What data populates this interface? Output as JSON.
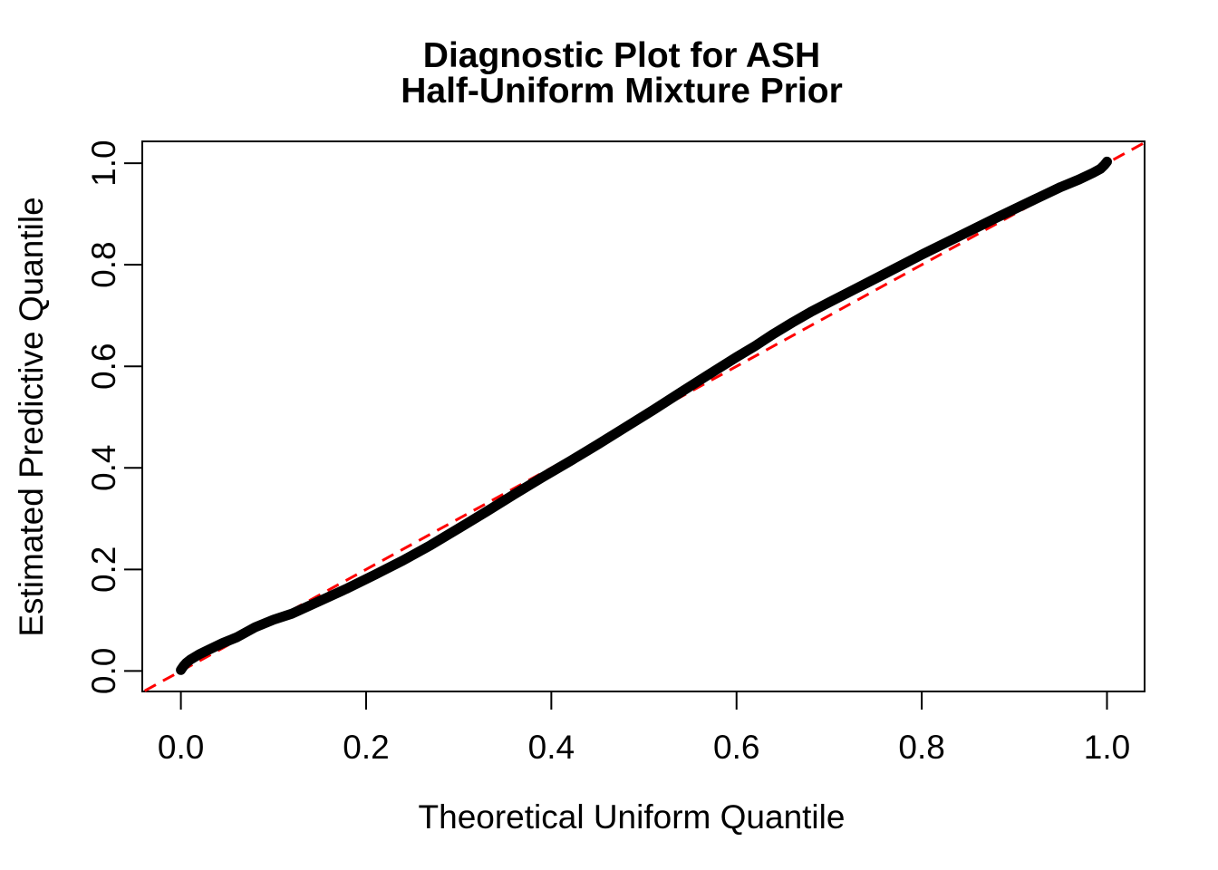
{
  "title": {
    "line1": "Diagnostic Plot for ASH",
    "line2": "Half-Uniform Mixture Prior"
  },
  "colors": {
    "curve": "#000000",
    "reference_line": "#FF0000",
    "background": "#FFFFFF",
    "text": "#000000"
  },
  "chart_data": {
    "type": "line",
    "title": "Diagnostic Plot for ASH\nHalf-Uniform Mixture Prior",
    "title_lines": [
      "Diagnostic Plot for ASH",
      "Half-Uniform Mixture Prior"
    ],
    "xlabel": "Theoretical Uniform Quantile",
    "ylabel": "Estimated Predictive Quantile",
    "xlim": [
      -0.04,
      1.04
    ],
    "ylim": [
      -0.04,
      1.04
    ],
    "grid": false,
    "legend": null,
    "x_ticks": [
      0.0,
      0.2,
      0.4,
      0.6,
      0.8,
      1.0
    ],
    "y_ticks": [
      0.0,
      0.2,
      0.4,
      0.6,
      0.8,
      1.0
    ],
    "x_tick_labels": [
      "0.0",
      "0.2",
      "0.4",
      "0.6",
      "0.8",
      "1.0"
    ],
    "y_tick_labels": [
      "0.0",
      "0.2",
      "0.4",
      "0.6",
      "0.8",
      "1.0"
    ],
    "series": [
      {
        "name": "reference-line-y-equals-x",
        "color": "#FF0000",
        "style": "dashed",
        "points": [
          [
            -0.039,
            -0.039
          ],
          [
            1.039,
            1.039
          ]
        ]
      },
      {
        "name": "estimated-vs-theoretical-quantiles",
        "color": "#000000",
        "style": "solid-thick",
        "points": [
          [
            0.0,
            0.002
          ],
          [
            0.003,
            0.01
          ],
          [
            0.006,
            0.016
          ],
          [
            0.01,
            0.022
          ],
          [
            0.02,
            0.033
          ],
          [
            0.03,
            0.042
          ],
          [
            0.045,
            0.055
          ],
          [
            0.06,
            0.066
          ],
          [
            0.08,
            0.086
          ],
          [
            0.1,
            0.101
          ],
          [
            0.12,
            0.113
          ],
          [
            0.15,
            0.138
          ],
          [
            0.18,
            0.163
          ],
          [
            0.21,
            0.19
          ],
          [
            0.24,
            0.218
          ],
          [
            0.27,
            0.248
          ],
          [
            0.3,
            0.281
          ],
          [
            0.33,
            0.314
          ],
          [
            0.36,
            0.348
          ],
          [
            0.39,
            0.381
          ],
          [
            0.42,
            0.413
          ],
          [
            0.45,
            0.446
          ],
          [
            0.48,
            0.48
          ],
          [
            0.51,
            0.514
          ],
          [
            0.54,
            0.549
          ],
          [
            0.57,
            0.584
          ],
          [
            0.6,
            0.618
          ],
          [
            0.62,
            0.64
          ],
          [
            0.64,
            0.664
          ],
          [
            0.66,
            0.686
          ],
          [
            0.68,
            0.707
          ],
          [
            0.7,
            0.726
          ],
          [
            0.73,
            0.754
          ],
          [
            0.76,
            0.782
          ],
          [
            0.8,
            0.82
          ],
          [
            0.84,
            0.856
          ],
          [
            0.88,
            0.892
          ],
          [
            0.92,
            0.927
          ],
          [
            0.95,
            0.953
          ],
          [
            0.97,
            0.968
          ],
          [
            0.985,
            0.981
          ],
          [
            0.993,
            0.989
          ],
          [
            0.997,
            0.996
          ],
          [
            1.0,
            1.003
          ]
        ]
      }
    ]
  }
}
